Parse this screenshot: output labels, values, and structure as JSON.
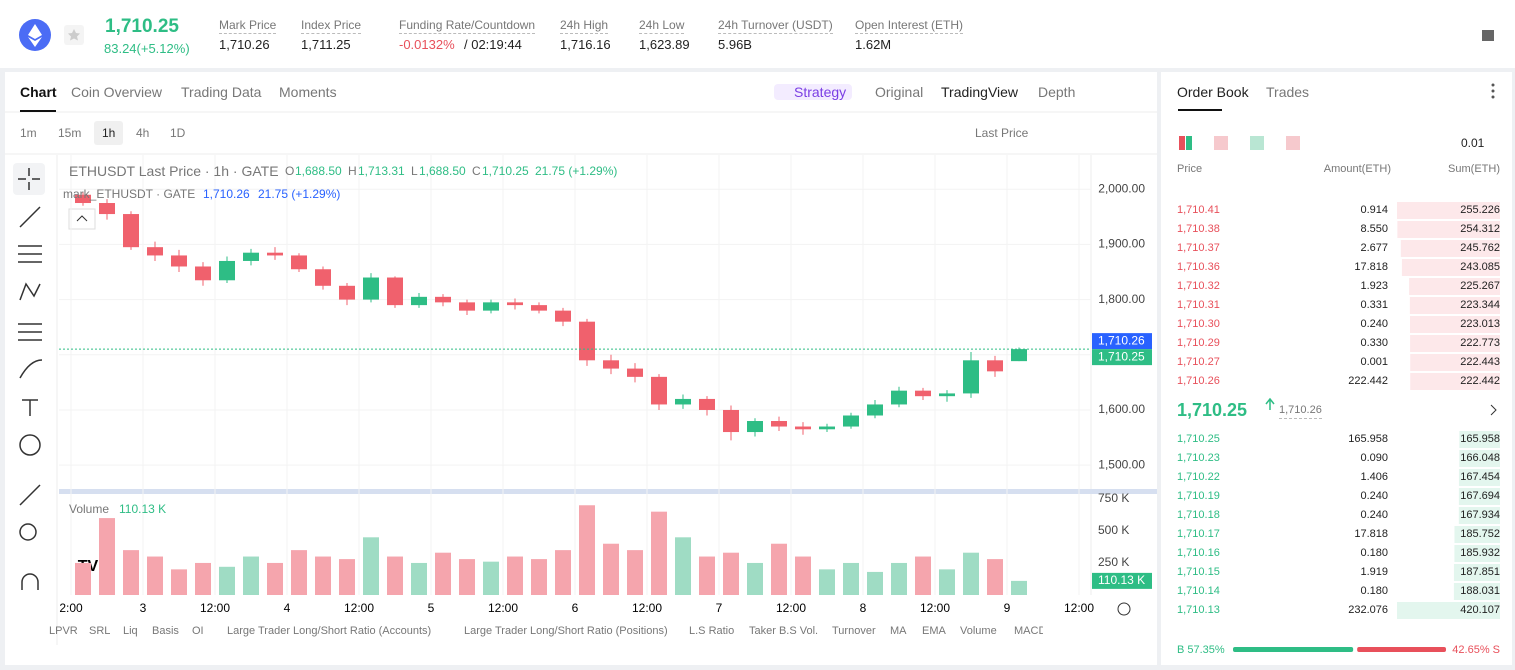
{
  "header": {
    "price": "1,710.25",
    "change": "83.24(+5.12%)",
    "stats": [
      {
        "label": "Mark Price",
        "value": "1,710.26"
      },
      {
        "label": "Index Price",
        "value": "1,711.25"
      },
      {
        "label": "Funding Rate/Countdown",
        "value": "-0.0132%",
        "extra": "/ 02:19:44"
      },
      {
        "label": "24h High",
        "value": "1,716.16"
      },
      {
        "label": "24h Low",
        "value": "1,623.89"
      },
      {
        "label": "24h Turnover (USDT)",
        "value": "5.96B"
      },
      {
        "label": "Open Interest (ETH)",
        "value": "1.62M"
      }
    ]
  },
  "chart_tabs": [
    "Chart",
    "Coin Overview",
    "Trading Data",
    "Moments"
  ],
  "view_tabs": [
    "Strategy",
    "Original",
    "TradingView",
    "Depth"
  ],
  "intervals": [
    "1m",
    "15m",
    "1h",
    "4h",
    "1D"
  ],
  "price_source": "Last Price",
  "indicators": [
    "LPVR",
    "SRL",
    "Liq",
    "Basis",
    "OI",
    "Large Trader Long/Short Ratio (Accounts)",
    "Large Trader Long/Short Ratio (Positions)",
    "L.S Ratio",
    "Taker B.S Vol.",
    "Turnover",
    "MA",
    "EMA",
    "Volume",
    "MACD"
  ],
  "order_book": {
    "tabs": [
      "Order Book",
      "Trades"
    ],
    "precision": "0.01",
    "columns": [
      "Price",
      "Amount(ETH)",
      "Sum(ETH)"
    ],
    "asks": [
      [
        "1,710.41",
        "0.914",
        "255.226"
      ],
      [
        "1,710.38",
        "8.550",
        "254.312"
      ],
      [
        "1,710.37",
        "2.677",
        "245.762"
      ],
      [
        "1,710.36",
        "17.818",
        "243.085"
      ],
      [
        "1,710.32",
        "1.923",
        "225.267"
      ],
      [
        "1,710.31",
        "0.331",
        "223.344"
      ],
      [
        "1,710.30",
        "0.240",
        "223.013"
      ],
      [
        "1,710.29",
        "0.330",
        "222.773"
      ],
      [
        "1,710.27",
        "0.001",
        "222.443"
      ],
      [
        "1,710.26",
        "222.442",
        "222.442"
      ]
    ],
    "last_price": "1,710.25",
    "mark_price": "1,710.26",
    "bids": [
      [
        "1,710.25",
        "165.958",
        "165.958"
      ],
      [
        "1,710.23",
        "0.090",
        "166.048"
      ],
      [
        "1,710.22",
        "1.406",
        "167.454"
      ],
      [
        "1,710.19",
        "0.240",
        "167.694"
      ],
      [
        "1,710.18",
        "0.240",
        "167.934"
      ],
      [
        "1,710.17",
        "17.818",
        "185.752"
      ],
      [
        "1,710.16",
        "0.180",
        "185.932"
      ],
      [
        "1,710.15",
        "1.919",
        "187.851"
      ],
      [
        "1,710.14",
        "0.180",
        "188.031"
      ],
      [
        "1,710.13",
        "232.076",
        "420.107"
      ]
    ],
    "ratio": {
      "buy": 57.35,
      "sell": 42.65,
      "buy_label": "B 57.35%",
      "sell_label": "42.65% S"
    }
  },
  "chart_data": [
    {
      "type": "candlestick",
      "legend": [
        "ETHUSDT Last Price · 1h · GATE",
        "O",
        "1,688.50",
        "H",
        "1,713.31",
        "L",
        "1,688.50",
        "C",
        "1,710.25",
        "21.75 (+1.29%)"
      ],
      "mark_legend": [
        "mark_ETHUSDT · GATE",
        "1,710.26",
        "21.75 (+1.29%)"
      ],
      "up_color": "#2ebd85",
      "down_color": "#f0616d",
      "x": [
        2,
        6,
        10,
        14,
        18,
        22,
        26,
        30,
        34,
        38,
        42,
        46,
        50,
        54,
        58,
        62,
        66,
        70,
        74,
        78,
        82,
        86,
        90,
        94,
        98,
        102,
        106,
        110,
        114,
        118,
        122,
        126,
        130,
        134,
        138,
        142,
        146,
        150,
        154,
        158
      ],
      "open": [
        1990,
        1975,
        1955,
        1895,
        1880,
        1860,
        1835,
        1870,
        1885,
        1880,
        1855,
        1825,
        1800,
        1840,
        1790,
        1805,
        1795,
        1780,
        1795,
        1790,
        1780,
        1760,
        1690,
        1675,
        1660,
        1610,
        1620,
        1600,
        1560,
        1580,
        1570,
        1565,
        1570,
        1590,
        1610,
        1635,
        1625,
        1630,
        1690,
        1688.5
      ],
      "high": [
        1995,
        1982,
        1960,
        1905,
        1890,
        1868,
        1878,
        1892,
        1895,
        1884,
        1860,
        1830,
        1848,
        1842,
        1812,
        1810,
        1800,
        1800,
        1802,
        1795,
        1785,
        1765,
        1700,
        1685,
        1665,
        1628,
        1625,
        1608,
        1585,
        1588,
        1578,
        1575,
        1595,
        1618,
        1642,
        1640,
        1636,
        1705,
        1698,
        1713.31
      ],
      "low": [
        1970,
        1945,
        1890,
        1870,
        1850,
        1825,
        1830,
        1862,
        1872,
        1850,
        1818,
        1790,
        1795,
        1785,
        1785,
        1788,
        1772,
        1775,
        1782,
        1775,
        1752,
        1680,
        1665,
        1650,
        1600,
        1602,
        1590,
        1545,
        1552,
        1562,
        1555,
        1560,
        1566,
        1585,
        1605,
        1618,
        1615,
        1622,
        1660,
        1688.5
      ],
      "close": [
        1975,
        1955,
        1895,
        1880,
        1860,
        1835,
        1870,
        1885,
        1880,
        1855,
        1825,
        1800,
        1840,
        1790,
        1805,
        1795,
        1780,
        1795,
        1790,
        1780,
        1760,
        1690,
        1675,
        1660,
        1610,
        1620,
        1600,
        1560,
        1580,
        1570,
        1565,
        1570,
        1590,
        1610,
        1635,
        1625,
        1630,
        1690,
        1670,
        1710.25
      ],
      "xlim": [
        -2,
        170
      ],
      "xticks": [
        {
          "value": 0,
          "label": "2:00"
        },
        {
          "value": 12,
          "label": "3"
        },
        {
          "value": 24,
          "label": "12:00"
        },
        {
          "value": 36,
          "label": "4"
        },
        {
          "value": 48,
          "label": "12:00"
        },
        {
          "value": 60,
          "label": "5"
        },
        {
          "value": 72,
          "label": "12:00"
        },
        {
          "value": 84,
          "label": "6"
        },
        {
          "value": 96,
          "label": "12:00"
        },
        {
          "value": 108,
          "label": "7"
        },
        {
          "value": 120,
          "label": "12:00"
        },
        {
          "value": 132,
          "label": "8"
        },
        {
          "value": 144,
          "label": "12:00"
        },
        {
          "value": 156,
          "label": "9"
        },
        {
          "value": 168,
          "label": "12:00"
        }
      ],
      "ylim": [
        1455,
        2062
      ],
      "yticks": [
        {
          "value": 1500,
          "label": "1,500.00"
        },
        {
          "value": 1600,
          "label": "1,600.00"
        },
        {
          "value": 1700,
          "label": "1,700.00"
        },
        {
          "value": 1800,
          "label": "1,800.00"
        },
        {
          "value": 1900,
          "label": "1,900.00"
        },
        {
          "value": 2000,
          "label": "2,000.00"
        }
      ],
      "price_tags": [
        {
          "value": 1710.26,
          "label": "1,710.26",
          "color": "#2962ff"
        },
        {
          "value": 1710.25,
          "label": "1,710.25",
          "color": "#2ebd85"
        }
      ],
      "grid": true
    },
    {
      "type": "bar",
      "legend": [
        "Volume",
        "110.13 K"
      ],
      "values": [
        250,
        600,
        350,
        300,
        200,
        250,
        220,
        300,
        250,
        350,
        300,
        280,
        450,
        300,
        250,
        330,
        280,
        260,
        300,
        280,
        350,
        700,
        400,
        350,
        650,
        450,
        300,
        330,
        250,
        400,
        300,
        200,
        250,
        180,
        250,
        300,
        200,
        330,
        280,
        110.13
      ],
      "ylim": [
        0,
        780
      ],
      "yticks": [
        {
          "value": 250,
          "label": "250 K"
        },
        {
          "value": 500,
          "label": "500 K"
        },
        {
          "value": 750,
          "label": "750 K"
        }
      ],
      "last_tag": {
        "value": 110.13,
        "label": "110.13 K"
      },
      "up_color": "#9fdcc4",
      "down_color": "#f5a5ad"
    }
  ]
}
